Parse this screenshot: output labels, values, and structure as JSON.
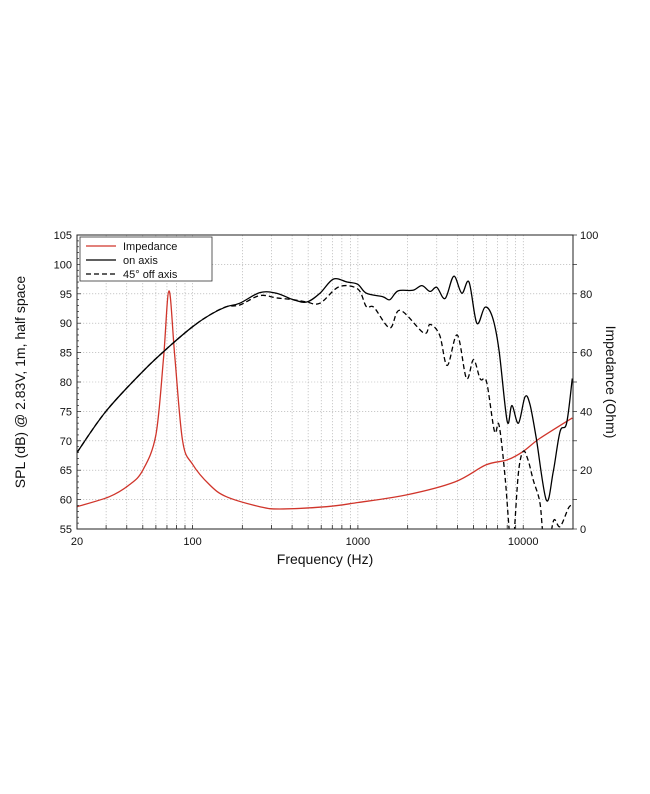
{
  "chart_data": {
    "type": "line",
    "title": "",
    "xlabel": "Frequency (Hz)",
    "ylabel": "SPL (dB) @ 2.83V, 1m, half space",
    "y2label": "Impedance (Ohm)",
    "xscale": "log",
    "xlim": [
      20,
      20000
    ],
    "ylim": [
      55,
      105
    ],
    "y2lim": [
      0,
      100
    ],
    "x_ticks": [
      "20",
      "100",
      "1000",
      "10000"
    ],
    "y_ticks": [
      "55",
      "60",
      "65",
      "70",
      "75",
      "80",
      "85",
      "90",
      "95",
      "100",
      "105"
    ],
    "y2_ticks": [
      "0",
      "20",
      "40",
      "60",
      "80",
      "100"
    ],
    "grid": true,
    "legend_position": "top-left",
    "series": [
      {
        "name": "Impedance",
        "axis": "right",
        "color": "#d0352b",
        "dash": "solid",
        "x": [
          20,
          31.4,
          41.4,
          50,
          60,
          66.7,
          72,
          78,
          87,
          100,
          127,
          160,
          255,
          337,
          645,
          1000,
          1970,
          3850,
          5950,
          8000,
          10000,
          12600,
          19800
        ],
        "y": [
          7.6,
          11,
          15,
          20,
          32,
          58,
          81,
          59,
          30,
          22,
          15,
          11,
          7.6,
          6.8,
          7.6,
          9,
          11.6,
          16,
          21.8,
          23.5,
          26.4,
          30.8,
          37.8
        ]
      },
      {
        "name": "on axis",
        "axis": "left",
        "color": "#000000",
        "dash": "solid",
        "x": [
          20,
          29.9,
          50,
          72,
          100,
          127,
          160,
          193,
          255,
          322,
          406,
          490,
          590,
          710,
          860,
          1000,
          1125,
          1415,
          1560,
          1750,
          2150,
          2440,
          2730,
          3000,
          3370,
          3800,
          4250,
          4700,
          5240,
          5860,
          6500,
          7140,
          8000,
          8540,
          9350,
          10260,
          11000,
          12000,
          13800,
          15200,
          16700,
          18300,
          19800
        ],
        "y": [
          68,
          75,
          81.8,
          86,
          89.4,
          91.4,
          92.8,
          93.4,
          95.2,
          95.1,
          94,
          93.6,
          95.1,
          97.5,
          97,
          96.6,
          95.1,
          94.5,
          94,
          95.5,
          95.6,
          96.4,
          95.4,
          96.1,
          94.2,
          98,
          95.1,
          97,
          90,
          92.7,
          91.1,
          85.4,
          73.3,
          76,
          73,
          77.5,
          76.1,
          70.4,
          59.9,
          64.8,
          71.6,
          73,
          80.6
        ]
      },
      {
        "name": "45° off axis",
        "axis": "left",
        "color": "#000000",
        "dash": "dashed",
        "x": [
          20,
          29.9,
          50,
          72,
          100,
          127,
          160,
          193,
          255,
          322,
          406,
          490,
          590,
          770,
          1000,
          1125,
          1250,
          1560,
          1800,
          2510,
          2730,
          3120,
          3470,
          3990,
          4540,
          5000,
          5500,
          6000,
          6700,
          7140,
          7780,
          8400,
          8740,
          9350,
          10000,
          10700,
          11500,
          12600,
          13200,
          14200,
          15300,
          16700,
          18800,
          19800
        ],
        "y": [
          68,
          75,
          81.8,
          86,
          89.4,
          91.4,
          92.8,
          93.1,
          94.7,
          94.3,
          94,
          93.6,
          93.4,
          96.2,
          95.8,
          92.8,
          92.7,
          89.2,
          92.2,
          88.3,
          89.8,
          88,
          82.8,
          88,
          80.6,
          83.8,
          80.5,
          80,
          71.6,
          72.7,
          63.6,
          52,
          53,
          64.5,
          68.2,
          66.7,
          63.3,
          59.6,
          54,
          52,
          56.5,
          55.4,
          58.6,
          59
        ]
      }
    ]
  }
}
